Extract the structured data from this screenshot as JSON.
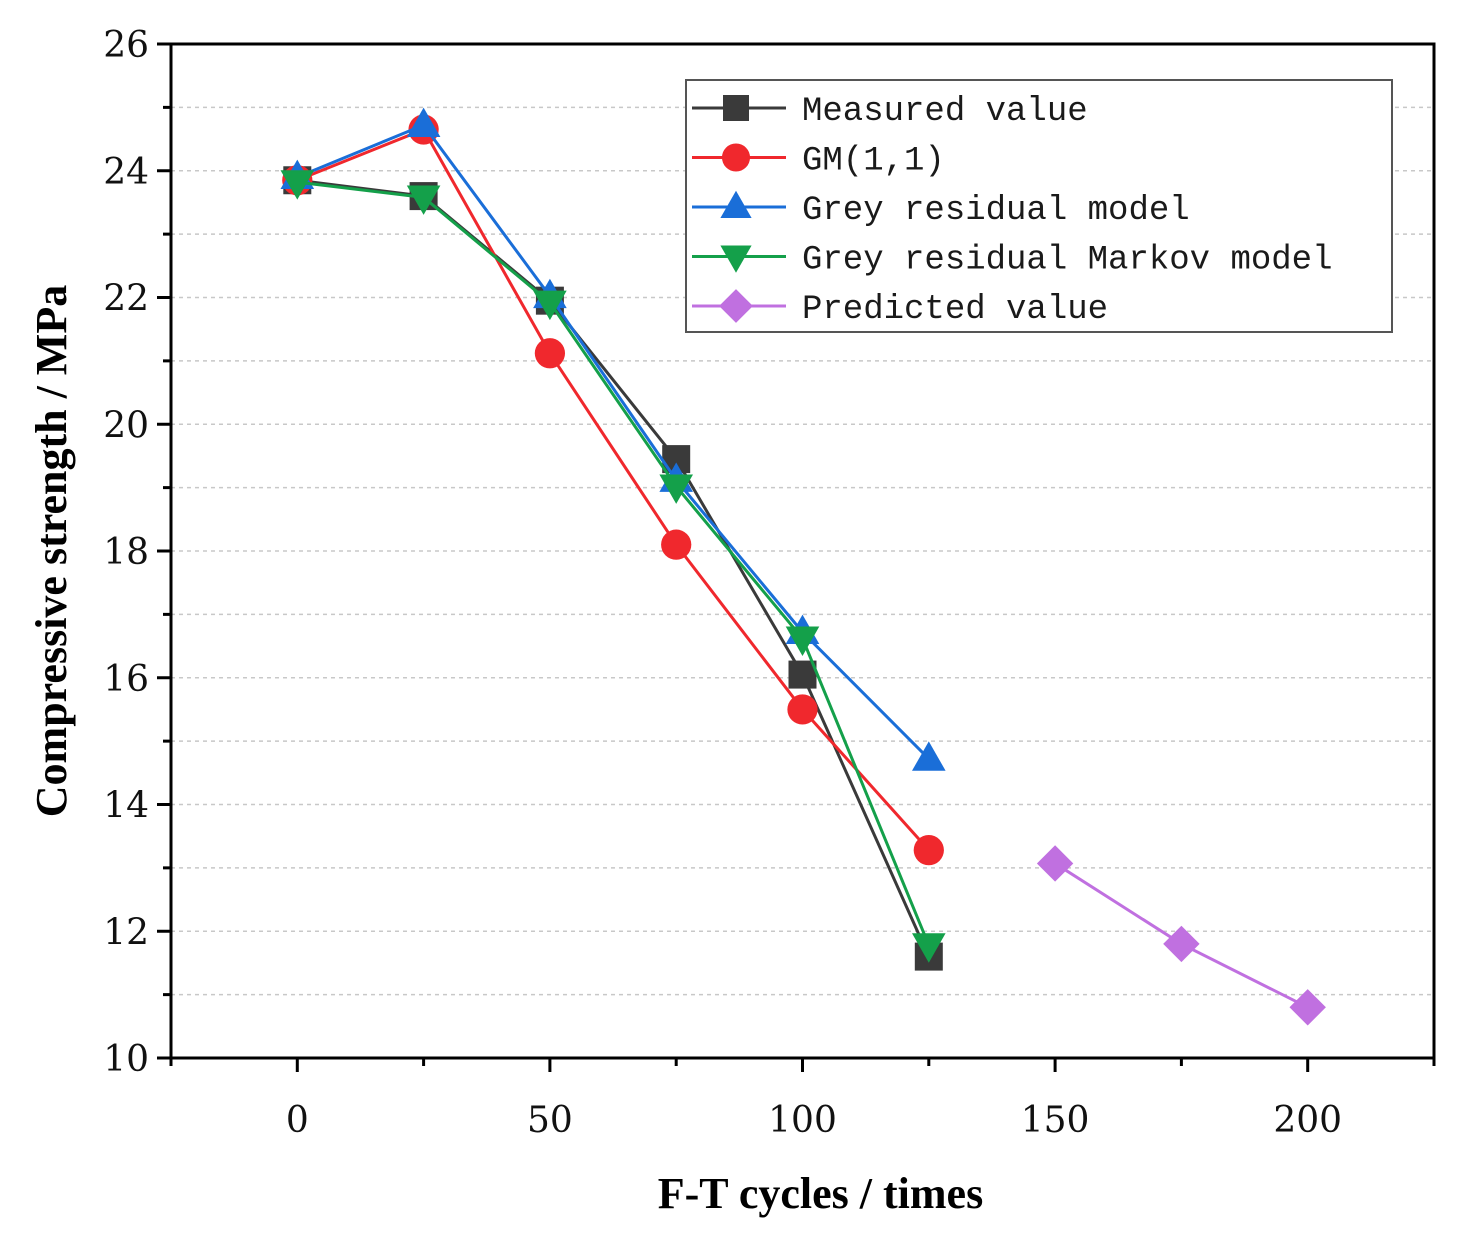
{
  "chart_data": {
    "type": "line",
    "title": "",
    "xlabel": "F-T cycles / times",
    "ylabel": "Compressive strength / MPa",
    "xlim": [
      -25,
      225
    ],
    "ylim": [
      10,
      26
    ],
    "xticks": [
      0,
      50,
      100,
      150,
      200
    ],
    "yticks": [
      10,
      12,
      14,
      16,
      18,
      20,
      22,
      24,
      26
    ],
    "grid": "horizontal-dotted",
    "legend_position": "top-right",
    "series": [
      {
        "name": "Measured value",
        "marker": "square",
        "color": "#3a3a3a",
        "x": [
          0,
          25,
          50,
          75,
          100,
          125
        ],
        "y": [
          23.85,
          23.6,
          21.95,
          19.45,
          16.05,
          11.6
        ]
      },
      {
        "name": "GM(1,1)",
        "marker": "circle",
        "color": "#f0282d",
        "x": [
          0,
          25,
          50,
          75,
          100,
          125
        ],
        "y": [
          23.85,
          24.65,
          21.12,
          18.1,
          15.5,
          13.28
        ]
      },
      {
        "name": "Grey residual model",
        "marker": "triangle-up",
        "color": "#1a6ed8",
        "x": [
          0,
          25,
          50,
          75,
          100,
          125
        ],
        "y": [
          23.9,
          24.72,
          22.02,
          19.12,
          16.72,
          14.72
        ]
      },
      {
        "name": "Grey residual Markov model",
        "marker": "triangle-down",
        "color": "#14a04a",
        "x": [
          0,
          25,
          50,
          75,
          100,
          125
        ],
        "y": [
          23.82,
          23.58,
          21.92,
          19.02,
          16.62,
          11.78
        ]
      },
      {
        "name": "Predicted value",
        "marker": "diamond",
        "color": "#c070e0",
        "x": [
          150,
          175,
          200
        ],
        "y": [
          13.07,
          11.8,
          10.8
        ]
      }
    ]
  }
}
